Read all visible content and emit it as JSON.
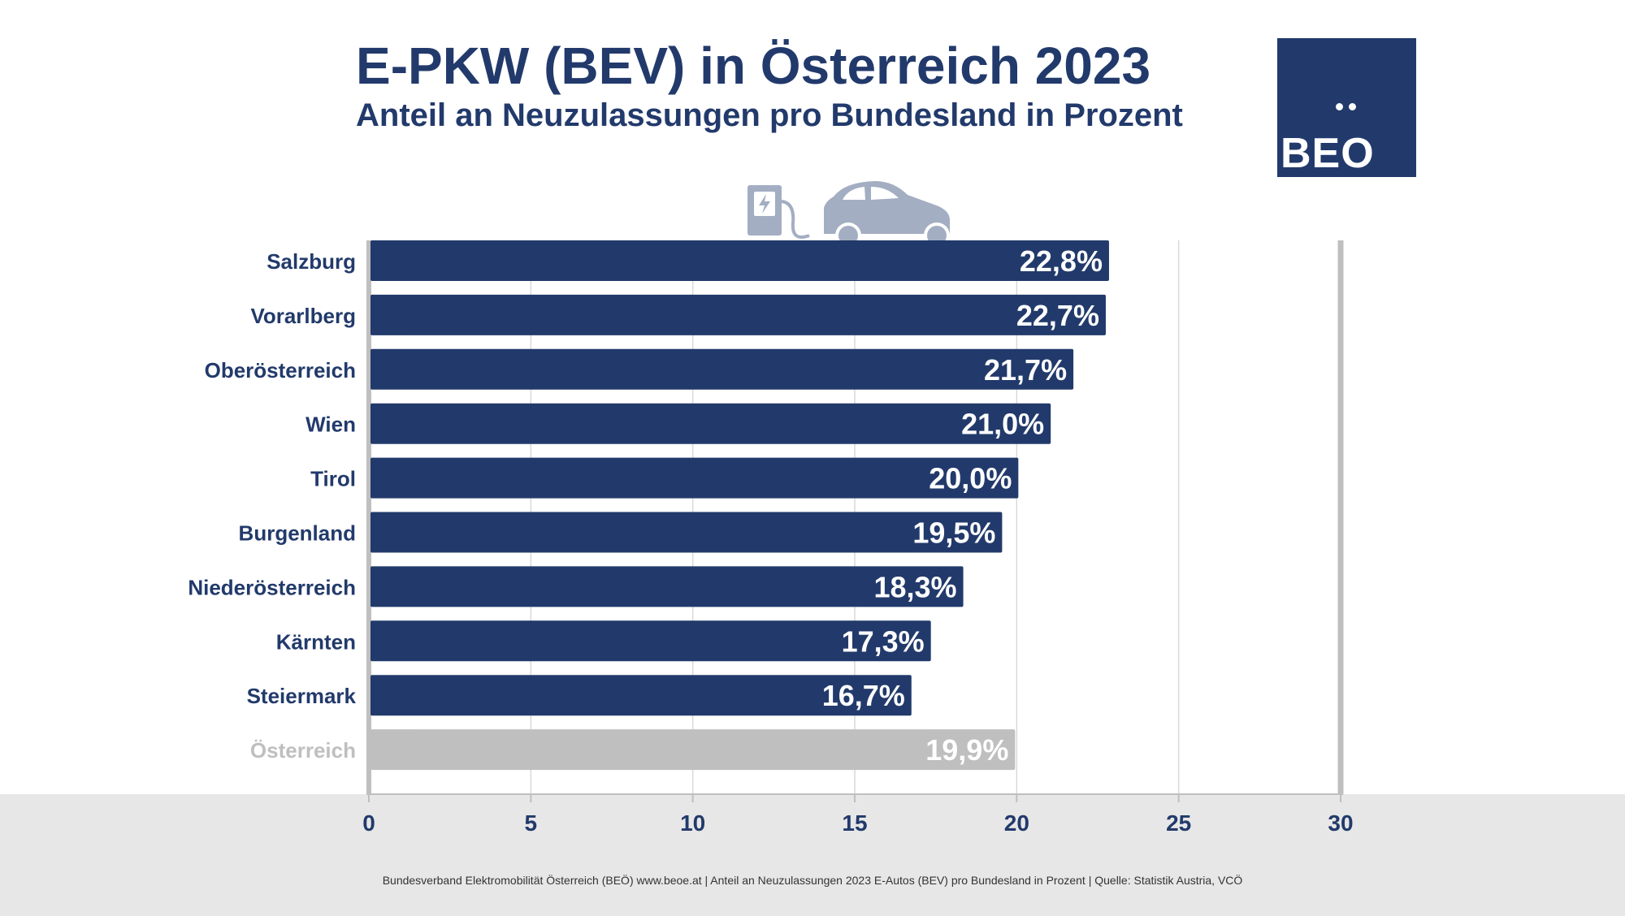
{
  "title": "E-PKW (BEV) in Österreich 2023",
  "subtitle": "Anteil an Neuzulassungen pro Bundesland in Prozent",
  "logo_text": "BEO",
  "footer": "Bundesverband Elektromobilität Österreich (BEÖ) www.beoe.at | Anteil an Neuzulassungen 2023 E-Autos (BEV) pro Bundesland in Prozent | Quelle: Statistik Austria, VCÖ",
  "colors": {
    "bar": "#223a6b",
    "highlight_bar": "#bfbfbf",
    "text": "#223a6b",
    "highlight_text": "#bfbfbf",
    "axis": "#bfbfbf",
    "grid": "#d9d9d9",
    "background_band": "#e7e7e7",
    "icon": "#a3aec3"
  },
  "chart_data": {
    "type": "bar",
    "orientation": "horizontal",
    "categories": [
      "Salzburg",
      "Vorarlberg",
      "Oberösterreich",
      "Wien",
      "Tirol",
      "Burgenland",
      "Niederösterreich",
      "Kärnten",
      "Steiermark",
      "Österreich"
    ],
    "values": [
      22.8,
      22.7,
      21.7,
      21.0,
      20.0,
      19.5,
      18.3,
      17.3,
      16.7,
      19.9
    ],
    "value_labels": [
      "22,8%",
      "22,7%",
      "21,7%",
      "21,0%",
      "20,0%",
      "19,5%",
      "18,3%",
      "17,3%",
      "16,7%",
      "19,9%"
    ],
    "highlight_category": "Österreich",
    "xlim": [
      0,
      30
    ],
    "x_ticks": [
      "0",
      "5",
      "10",
      "15",
      "20",
      "25",
      "30"
    ],
    "grid": true,
    "legend": "none"
  }
}
